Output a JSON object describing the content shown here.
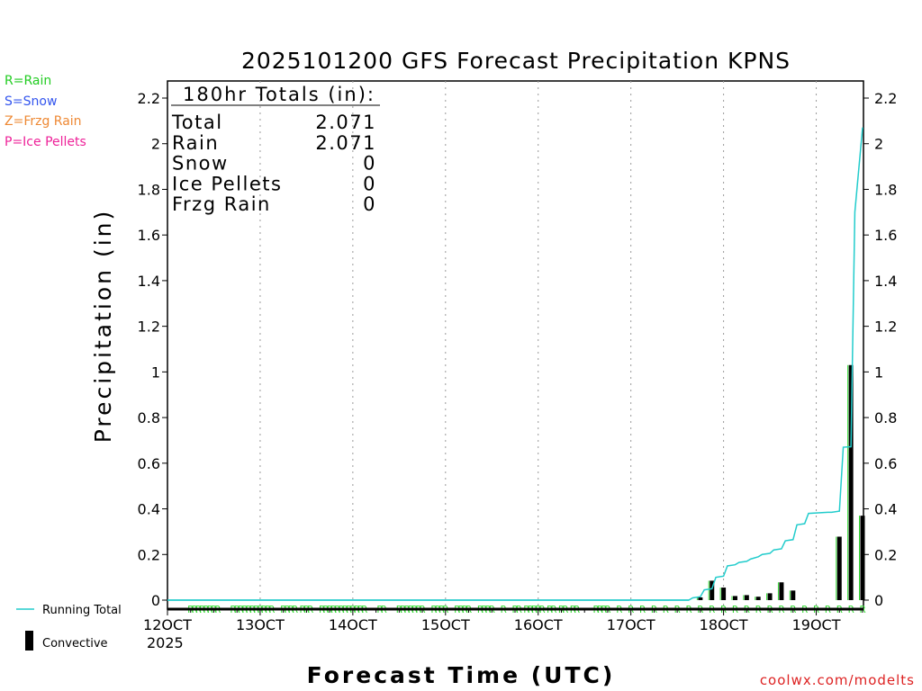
{
  "colors": {
    "rain": "#33dd33",
    "snow": "#3355ee",
    "frzg": "#ee8833",
    "ice": "#ee2299",
    "running": "#22cccc",
    "credit": "#dd2222"
  },
  "precip_key": [
    {
      "label": "R=Rain",
      "color": "#22cc22"
    },
    {
      "label": "S=Snow",
      "color": "#3355ee"
    },
    {
      "label": "Z=Frzg Rain",
      "color": "#ee8833"
    },
    {
      "label": "P=Ice Pellets",
      "color": "#ee2299"
    }
  ],
  "totals_box": {
    "heading": "180hr Totals (in):",
    "rows": [
      {
        "name": "Total",
        "value": "2.071"
      },
      {
        "name": "Rain",
        "value": "2.071"
      },
      {
        "name": "Snow",
        "value": "0"
      },
      {
        "name": "Ice Pellets",
        "value": "0"
      },
      {
        "name": "Frzg Rain",
        "value": "0"
      }
    ]
  },
  "bottom_legend": {
    "running_total": "Running Total",
    "convective": "Convective"
  },
  "credit": "coolwx.com/modelts",
  "chart_data": {
    "type": "bar",
    "title": "2025101200 GFS Forecast Precipitation KPNS",
    "xlabel": "Forecast Time (UTC)",
    "ylabel": "Precipitation (in)",
    "x_unit": "forecast hour",
    "xlim": [
      0,
      180
    ],
    "ylim": [
      0,
      2.3
    ],
    "y_ticks": [
      0,
      0.2,
      0.4,
      0.6,
      0.8,
      1,
      1.2,
      1.4,
      1.6,
      1.8,
      2,
      2.2
    ],
    "y_tick_labels": [
      "0",
      "0.2",
      "0.4",
      "0.6",
      "0.8",
      "1",
      "1.2",
      "1.4",
      "1.6",
      "1.8",
      "2",
      "2.2"
    ],
    "x_ticks": [
      {
        "hour": 0,
        "label": "12OCT"
      },
      {
        "hour": 24,
        "label": "13OCT"
      },
      {
        "hour": 48,
        "label": "14OCT"
      },
      {
        "hour": 72,
        "label": "15OCT"
      },
      {
        "hour": 96,
        "label": "16OCT"
      },
      {
        "hour": 120,
        "label": "17OCT"
      },
      {
        "hour": 144,
        "label": "18OCT"
      },
      {
        "hour": 168,
        "label": "19OCT"
      }
    ],
    "year_label": "2025",
    "grid": true,
    "precip_type_marker": "R",
    "rain_marker_hours": [
      6,
      7,
      8,
      9,
      10,
      11,
      12,
      13,
      17,
      18,
      19,
      20,
      21,
      22,
      23,
      24,
      25,
      26,
      27,
      30,
      31,
      32,
      33,
      35,
      36,
      37,
      40,
      41,
      42,
      43,
      44,
      45,
      46,
      47,
      48,
      49,
      50,
      51,
      55,
      56,
      60,
      61,
      62,
      63,
      64,
      65,
      66,
      69,
      70,
      71,
      72,
      75,
      76,
      77,
      78,
      81,
      82,
      83,
      84,
      87,
      90,
      91,
      93,
      94,
      95,
      96,
      97,
      99,
      100,
      102,
      103,
      105,
      106,
      111,
      112,
      113,
      114,
      117,
      120,
      123,
      126,
      129,
      132,
      135,
      138,
      141,
      144,
      147,
      150,
      153,
      156,
      159,
      162,
      165,
      168,
      171,
      174,
      177,
      180
    ],
    "series": [
      {
        "name": "Convective",
        "hours": [
          138,
          141,
          144,
          147,
          150,
          153,
          156,
          159,
          162,
          165,
          168,
          171,
          174,
          177,
          180
        ],
        "values": [
          0.012,
          0.085,
          0.055,
          0.018,
          0.022,
          0.015,
          0.03,
          0.078,
          0.042,
          0.0,
          0.0,
          0.0,
          0.278,
          1.03,
          0.37
        ]
      },
      {
        "name": "Running Total",
        "hours": [
          0,
          135,
          136,
          138,
          139,
          141,
          142,
          144,
          145,
          147,
          148,
          150,
          151,
          153,
          154,
          156,
          157,
          159,
          160,
          162,
          163,
          165,
          166,
          168,
          169,
          171,
          172,
          174,
          175,
          177,
          178,
          180
        ],
        "values": [
          0,
          0,
          0.01,
          0.015,
          0.045,
          0.05,
          0.1,
          0.105,
          0.15,
          0.155,
          0.165,
          0.17,
          0.18,
          0.19,
          0.2,
          0.205,
          0.22,
          0.225,
          0.26,
          0.265,
          0.33,
          0.335,
          0.38,
          0.382,
          0.383,
          0.385,
          0.385,
          0.39,
          0.67,
          0.672,
          1.7,
          2.071
        ]
      }
    ]
  }
}
